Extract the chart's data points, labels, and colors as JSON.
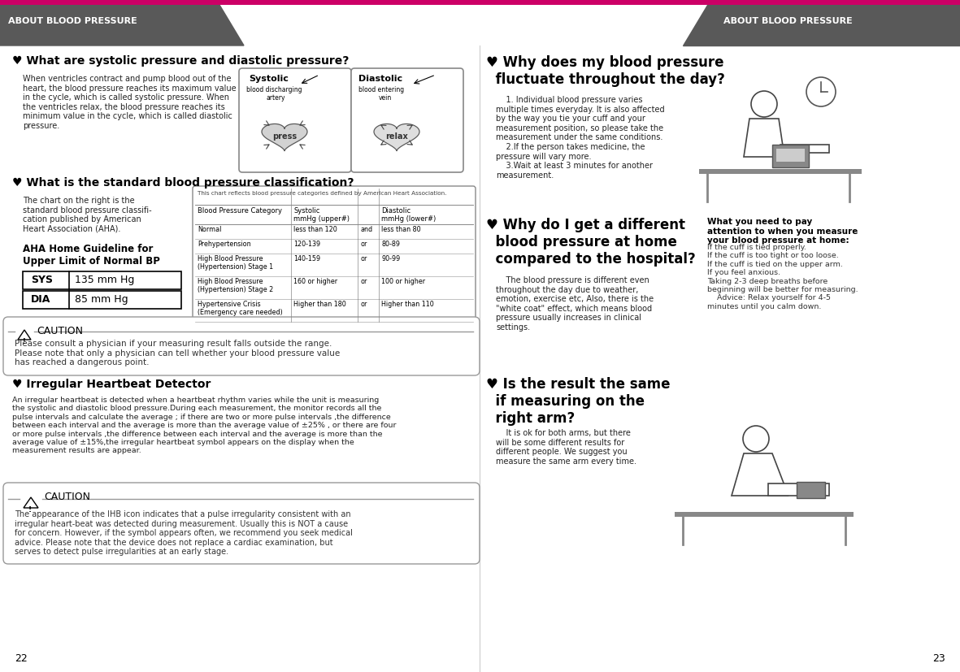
{
  "bg_color": "#ffffff",
  "header_color": "#595959",
  "header_text_color": "#ffffff",
  "header_text": "ABOUT BLOOD PRESSURE",
  "accent_color": "#cc0066",
  "page_numbers": [
    "22",
    "23"
  ],
  "section1_title": "♥ What are systolic pressure and diastolic pressure?",
  "section1_body": "When ventricles contract and pump blood out of the\nheart, the blood pressure reaches its maximum value\nin the cycle, which is called systolic pressure. When\nthe ventricles relax, the blood pressure reaches its\nminimum value in the cycle, which is called diastolic\npressure.",
  "section2_title": "♥ What is the standard blood pressure classification?",
  "section2_body": "The chart on the right is the\nstandard blood pressure classifi-\ncation published by American\nHeart Association (AHA).",
  "aha_guideline_title": "AHA Home Guideline for\nUpper Limit of Normal BP",
  "sys_label": "SYS",
  "sys_value": "135 mm Hg",
  "dia_label": "DIA",
  "dia_value": "85 mm Hg",
  "table_header_note": "This chart reflects blood pressure categories defined by American Heart Association.",
  "table_col1": "Blood Pressure Category",
  "table_col2": "Systolic\nmmHg (upper#)",
  "table_col4": "Diastolic\nmmHg (lower#)",
  "table_rows": [
    [
      "Normal",
      "less than 120",
      "and",
      "less than 80"
    ],
    [
      "Prehypertension",
      "120-139",
      "or",
      "80-89"
    ],
    [
      "High Blood Pressure\n(Hypertension) Stage 1",
      "140-159",
      "or",
      "90-99"
    ],
    [
      "High Blood Pressure\n(Hypertension) Stage 2",
      "160 or higher",
      "or",
      "100 or higher"
    ],
    [
      "Hypertensive Crisis\n(Emergency care needed)",
      "Higher than 180",
      "or",
      "Higher than 110"
    ]
  ],
  "caution1_text": "Please consult a physician if your measuring result falls outside the range.\nPlease note that only a physician can tell whether your blood pressure value\nhas reached a dangerous point.",
  "section3_title": "♥ Irregular Heartbeat Detector",
  "section3_body": "An irregular heartbeat is detected when a heartbeat rhythm varies while the unit is measuring\nthe systolic and diastolic blood pressure.During each measurement, the monitor records all the\npulse intervals and calculate the average ; if there are two or more pulse intervals ,the difference\nbetween each interval and the average is more than the average value of ±25% , or there are four\nor more pulse intervals ,the difference between each interval and the average is more than the\naverage value of ±15%,the irregular heartbeat symbol appears on the display when the\nmeasurement results are appear.",
  "caution2_text": "The appearance of the IHB icon indicates that a pulse irregularity consistent with an\nirregular heart-beat was detected during measurement. Usually this is NOT a cause\nfor concern. However, if the symbol appears often, we recommend you seek medical\nadvice. Please note that the device does not replace a cardiac examination, but\nserves to detect pulse irregularities at an early stage.",
  "right_q1_title": "♥ Why does my blood pressure\n  fluctuate throughout the day?",
  "right_q1_body": "    1. Individual blood pressure varies\nmultiple times everyday. It is also affected\nby the way you tie your cuff and your\nmeasurement position, so please take the\nmeasurement under the same conditions.\n    2.If the person takes medicine, the\npressure will vary more.\n    3.Wait at least 3 minutes for another\nmeasurement.",
  "right_q2_title": "♥ Why do I get a different\n  blood pressure at home\n  compared to the hospital?",
  "right_q2_body": "    The blood pressure is different even\nthroughout the day due to weather,\nemotion, exercise etc, Also, there is the\n\"white coat\" effect, which means blood\npressure usually increases in clinical\nsettings.",
  "right_home_measure_title": "What you need to pay\nattention to when you measure\nyour blood pressure at home:",
  "right_home_measure_body": "If the cuff is tied properly.\nIf the cuff is too tight or too loose.\nIf the cuff is tied on the upper arm.\nIf you feel anxious.\nTaking 2-3 deep breaths before\nbeginning will be better for measuring.\n    Advice: Relax yourself for 4-5\nminutes until you calm down.",
  "right_q3_title": "♥ Is the result the same\n  if measuring on the\n  right arm?",
  "right_q3_body": "    It is ok for both arms, but there\nwill be some different results for\ndifferent people. We suggest you\nmeasure the same arm every time.",
  "systolic_label": "Systolic",
  "diastolic_label": "Diastolic",
  "blood_discharging": "blood discharging",
  "artery": "artery",
  "blood_entering": "blood entering",
  "vein": "vein",
  "press_label": "press",
  "relax_label": "relax"
}
